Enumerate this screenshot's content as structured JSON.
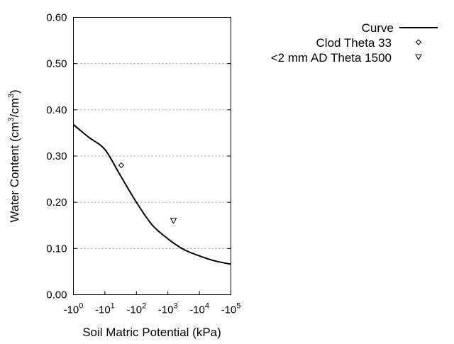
{
  "chart_data": {
    "type": "line",
    "title": "",
    "xlabel": "Soil Matric Potential (kPa)",
    "ylabel_parts": {
      "main": "Water Content (cm",
      "sup1": "3",
      "mid": "/cm",
      "sup2": "3",
      "end": ")"
    },
    "x_scale": "log",
    "xlim": [
      -1,
      -100000
    ],
    "ylim": [
      0.0,
      0.6
    ],
    "x_ticks": [
      {
        "value": -1,
        "base": "-10",
        "exp": "0"
      },
      {
        "value": -10,
        "base": "-10",
        "exp": "1"
      },
      {
        "value": -100,
        "base": "-10",
        "exp": "2"
      },
      {
        "value": -1000,
        "base": "-10",
        "exp": "3"
      },
      {
        "value": -10000,
        "base": "-10",
        "exp": "4"
      },
      {
        "value": -100000,
        "base": "-10",
        "exp": "5"
      }
    ],
    "y_ticks": [
      {
        "value": 0.0,
        "label": "0.00"
      },
      {
        "value": 0.1,
        "label": "0.10"
      },
      {
        "value": 0.2,
        "label": "0.20"
      },
      {
        "value": 0.3,
        "label": "0.30"
      },
      {
        "value": 0.4,
        "label": "0.40"
      },
      {
        "value": 0.5,
        "label": "0.50"
      },
      {
        "value": 0.6,
        "label": "0.60"
      }
    ],
    "grid": "horizontal dotted",
    "legend_placement": "right",
    "series": [
      {
        "name": "Curve",
        "kind": "line",
        "color": "#000000",
        "x": [
          -1,
          -3.16,
          -10,
          -31.6,
          -100,
          -316,
          -1000,
          -3160,
          -10000,
          -31600,
          -100000
        ],
        "y": [
          0.368,
          0.34,
          0.314,
          0.257,
          0.2,
          0.151,
          0.121,
          0.098,
          0.084,
          0.073,
          0.066
        ]
      },
      {
        "name": "Clod Theta 33",
        "kind": "scatter",
        "marker": "diamond",
        "x": [
          -33
        ],
        "y": [
          0.28
        ]
      },
      {
        "name": "<2 mm AD Theta 1500",
        "kind": "scatter",
        "marker": "triangle-down",
        "x": [
          -1500
        ],
        "y": [
          0.16
        ]
      }
    ]
  }
}
